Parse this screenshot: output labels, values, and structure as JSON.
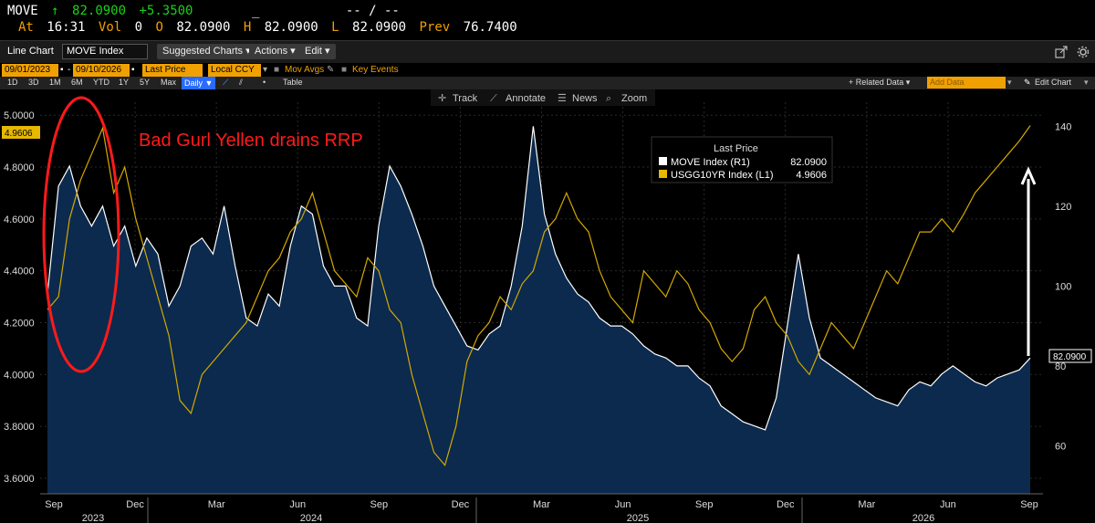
{
  "ticker": {
    "symbol": "MOVE",
    "arrow": "↑",
    "last": "82.0900",
    "change": "+5.3500",
    "blank1": "_",
    "dashes": "-- / --",
    "at_label": "At",
    "time": "16:31",
    "vol_label": "Vol",
    "vol": "0",
    "o_label": "O",
    "open": "82.0900",
    "h_label": "H",
    "high": "82.0900",
    "l_label": "L",
    "low": "82.0900",
    "prev_label": "Prev",
    "prev": "76.7400"
  },
  "toolbar": {
    "line_chart": "Line Chart",
    "security": "MOVE Index",
    "suggested": "Suggested Charts ▾",
    "actions": "Actions ▾",
    "edit": "Edit ▾"
  },
  "daterow": {
    "start": "09/01/2023",
    "end": "09/10/2026",
    "price_type": "Last Price",
    "currency": "Local CCY",
    "mov_avgs": "Mov Avgs",
    "key_events": "Key Events"
  },
  "periods": [
    "1D",
    "3D",
    "1M",
    "6M",
    "YTD",
    "1Y",
    "5Y",
    "Max"
  ],
  "frequency": "Daily ▼",
  "table_label": "Table",
  "related_data": "+ Related Data ▾",
  "add_data_placeholder": "Add Data",
  "edit_chart": "Edit Chart",
  "chart_tools": [
    "Track",
    "Annotate",
    "News",
    "Zoom"
  ],
  "annotation": "Bad Gurl Yellen drains RRP",
  "legend": {
    "title": "Last Price",
    "entries": [
      {
        "label": "MOVE Index  (R1)",
        "value": "82.0900",
        "color": "#ffffff"
      },
      {
        "label": "USGG10YR Index  (L1)",
        "value": "4.9606",
        "color": "#e6b800"
      }
    ]
  },
  "colors": {
    "yield_line": "#d4a800",
    "move_line": "#ffffff",
    "move_fill": "#0b2a4e",
    "annotation": "#ff1a1a"
  },
  "chart_data": {
    "type": "line",
    "x_axis": {
      "months": [
        "Sep",
        "Dec",
        "Mar",
        "Jun",
        "Sep",
        "Dec",
        "Mar",
        "Jun",
        "Sep",
        "Dec",
        "Mar",
        "Jun",
        "Sep"
      ],
      "years": [
        "2023",
        "2024",
        "2025",
        "2026"
      ]
    },
    "left_axis": {
      "ticks": [
        "5.0000",
        "4.8000",
        "4.6000",
        "4.4000",
        "4.2000",
        "4.0000",
        "3.8000",
        "3.6000"
      ],
      "range": [
        3.54,
        5.05
      ]
    },
    "right_axis": {
      "ticks": [
        "140",
        "120",
        "100",
        "80",
        "60"
      ],
      "range": [
        48,
        146
      ]
    },
    "last_labels": {
      "left": "4.9606",
      "right": "82.0900"
    },
    "series": [
      {
        "name": "USGG10YR Index",
        "axis": "left",
        "values": [
          4.25,
          4.3,
          4.6,
          4.75,
          4.85,
          4.95,
          4.7,
          4.8,
          4.6,
          4.45,
          4.3,
          4.15,
          3.9,
          3.85,
          4.0,
          4.05,
          4.1,
          4.15,
          4.2,
          4.3,
          4.4,
          4.45,
          4.55,
          4.6,
          4.7,
          4.55,
          4.4,
          4.35,
          4.3,
          4.45,
          4.4,
          4.25,
          4.2,
          4.0,
          3.85,
          3.7,
          3.65,
          3.8,
          4.05,
          4.15,
          4.2,
          4.3,
          4.25,
          4.35,
          4.4,
          4.55,
          4.6,
          4.7,
          4.6,
          4.55,
          4.4,
          4.3,
          4.25,
          4.2,
          4.4,
          4.35,
          4.3,
          4.4,
          4.35,
          4.25,
          4.2,
          4.1,
          4.05,
          4.1,
          4.25,
          4.3,
          4.2,
          4.15,
          4.05,
          4.0,
          4.1,
          4.2,
          4.15,
          4.1,
          4.2,
          4.3,
          4.4,
          4.35,
          4.45,
          4.55,
          4.55,
          4.6,
          4.55,
          4.62,
          4.7,
          4.75,
          4.8,
          4.85,
          4.9,
          4.96
        ]
      },
      {
        "name": "MOVE Index",
        "axis": "right",
        "values": [
          98,
          125,
          130,
          120,
          115,
          120,
          110,
          115,
          105,
          112,
          108,
          95,
          100,
          110,
          112,
          108,
          120,
          105,
          92,
          90,
          98,
          95,
          110,
          120,
          118,
          105,
          100,
          100,
          92,
          90,
          115,
          130,
          125,
          118,
          110,
          100,
          95,
          90,
          85,
          84,
          88,
          90,
          100,
          115,
          140,
          118,
          108,
          102,
          98,
          96,
          92,
          90,
          90,
          88,
          85,
          83,
          82,
          80,
          80,
          77,
          75,
          70,
          68,
          66,
          65,
          64,
          72,
          90,
          108,
          92,
          82,
          80,
          78,
          76,
          74,
          72,
          71,
          70,
          74,
          76,
          75,
          78,
          80,
          78,
          76,
          75,
          77,
          78,
          79,
          82
        ]
      }
    ]
  }
}
